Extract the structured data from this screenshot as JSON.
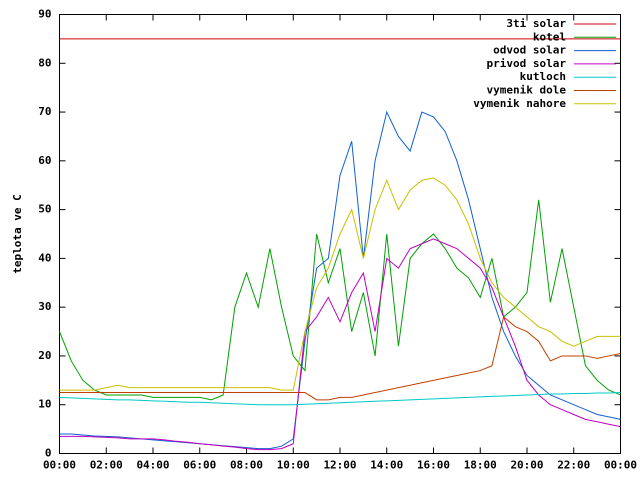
{
  "chart_data": {
    "type": "line",
    "y_label": "teplota ve C",
    "x": [
      0,
      0.5,
      1,
      1.5,
      2,
      2.5,
      3,
      3.5,
      4,
      4.5,
      5,
      5.5,
      6,
      6.5,
      7,
      7.5,
      8,
      8.5,
      9,
      9.5,
      10,
      10.5,
      11,
      11.5,
      12,
      12.5,
      13,
      13.5,
      14,
      14.5,
      15,
      15.5,
      16,
      16.5,
      17,
      17.5,
      18,
      18.5,
      19,
      19.5,
      20,
      20.5,
      21,
      21.5,
      22,
      22.5,
      23,
      23.5,
      24
    ],
    "xlim": [
      0,
      24
    ],
    "xticks": [
      {
        "value": 0,
        "label": "00:00"
      },
      {
        "value": 2,
        "label": "02:00"
      },
      {
        "value": 4,
        "label": "04:00"
      },
      {
        "value": 6,
        "label": "06:00"
      },
      {
        "value": 8,
        "label": "08:00"
      },
      {
        "value": 10,
        "label": "10:00"
      },
      {
        "value": 12,
        "label": "12:00"
      },
      {
        "value": 14,
        "label": "14:00"
      },
      {
        "value": 16,
        "label": "16:00"
      },
      {
        "value": 18,
        "label": "18:00"
      },
      {
        "value": 20,
        "label": "20:00"
      },
      {
        "value": 22,
        "label": "22:00"
      },
      {
        "value": 24,
        "label": "00:00"
      }
    ],
    "ylim": [
      0,
      90
    ],
    "yticks": [
      0,
      10,
      20,
      30,
      40,
      50,
      60,
      70,
      80,
      90
    ],
    "legend": "top-right",
    "series": [
      {
        "name": "3ti solar",
        "color": "#cc0000",
        "values": [
          85,
          85,
          85,
          85,
          85,
          85,
          85,
          85,
          85,
          85,
          85,
          85,
          85,
          85,
          85,
          85,
          85,
          85,
          85,
          85,
          85,
          85,
          85,
          85,
          85,
          85,
          85,
          85,
          85,
          85,
          85,
          85,
          85,
          85,
          85,
          85,
          85,
          85,
          85,
          85,
          85,
          85,
          85,
          85,
          85,
          85,
          85,
          85,
          85
        ]
      },
      {
        "name": "kotel",
        "color": "#00a000",
        "values": [
          25,
          19,
          15,
          13,
          12,
          12,
          12,
          12,
          11.5,
          11.5,
          11.5,
          11.5,
          11.5,
          11,
          12,
          30,
          37,
          30,
          42,
          30,
          20,
          17,
          45,
          35,
          42,
          25,
          33,
          20,
          45,
          22,
          40,
          43,
          45,
          42,
          38,
          36,
          32,
          40,
          28,
          30,
          33,
          52,
          31,
          42,
          30,
          18,
          15,
          13,
          12
        ]
      },
      {
        "name": "odvod solar",
        "color": "#1060d0",
        "values": [
          4,
          4,
          3.8,
          3.6,
          3.5,
          3.4,
          3.2,
          3,
          2.8,
          2.6,
          2.4,
          2.2,
          2,
          1.8,
          1.6,
          1.4,
          1.2,
          1,
          1,
          1.5,
          3,
          23,
          38,
          40,
          57,
          64,
          40,
          60,
          70,
          65,
          62,
          70,
          69,
          66,
          60,
          52,
          42,
          32,
          25,
          20,
          16,
          14,
          12,
          11,
          10,
          9,
          8,
          7.5,
          7
        ]
      },
      {
        "name": "privod solar",
        "color": "#c000c0",
        "values": [
          3.5,
          3.5,
          3.5,
          3.4,
          3.3,
          3.2,
          3,
          3,
          3,
          2.8,
          2.5,
          2.3,
          2,
          1.8,
          1.5,
          1.3,
          1,
          0.8,
          0.8,
          1,
          2,
          25,
          28,
          32,
          27,
          33,
          37,
          25,
          40,
          38,
          42,
          43,
          44,
          43,
          42,
          40,
          38,
          34,
          28,
          22,
          15,
          12,
          10,
          9,
          8,
          7,
          6.5,
          6,
          5.5
        ]
      },
      {
        "name": "kutloch",
        "color": "#00c8c8",
        "values": [
          11.5,
          11.4,
          11.3,
          11.2,
          11.1,
          11,
          11,
          10.9,
          10.8,
          10.7,
          10.6,
          10.5,
          10.5,
          10.4,
          10.3,
          10.2,
          10.1,
          10,
          10,
          10,
          10,
          10.1,
          10.2,
          10.3,
          10.4,
          10.5,
          10.6,
          10.7,
          10.8,
          10.9,
          11,
          11.1,
          11.2,
          11.3,
          11.4,
          11.5,
          11.6,
          11.7,
          11.8,
          11.9,
          12,
          12.1,
          12.2,
          12.2,
          12.3,
          12.3,
          12.4,
          12.4,
          12.5
        ]
      },
      {
        "name": "vymenik dole",
        "color": "#c04000",
        "values": [
          12.5,
          12.5,
          12.5,
          12.5,
          12.5,
          12.5,
          12.5,
          12.5,
          12.5,
          12.5,
          12.5,
          12.5,
          12.5,
          12.5,
          12.5,
          12.5,
          12.5,
          12.5,
          12.5,
          12.5,
          12.5,
          12.5,
          11,
          11,
          11.5,
          11.5,
          12,
          12.5,
          13,
          13.5,
          14,
          14.5,
          15,
          15.5,
          16,
          16.5,
          17,
          18,
          28,
          26,
          25,
          23,
          19,
          20,
          20,
          20,
          19.5,
          20,
          20.5
        ]
      },
      {
        "name": "vymenik nahore",
        "color": "#c8c000",
        "values": [
          13,
          13,
          13,
          13,
          13.5,
          14,
          13.5,
          13.5,
          13.5,
          13.5,
          13.5,
          13.5,
          13.5,
          13.5,
          13.5,
          13.5,
          13.5,
          13.5,
          13.5,
          13,
          13,
          25,
          34,
          38,
          45,
          50,
          40,
          50,
          56,
          50,
          54,
          56,
          56.5,
          55,
          52,
          47,
          40,
          35,
          32,
          30,
          28,
          26,
          25,
          23,
          22,
          23,
          24,
          24,
          24
        ]
      }
    ]
  }
}
